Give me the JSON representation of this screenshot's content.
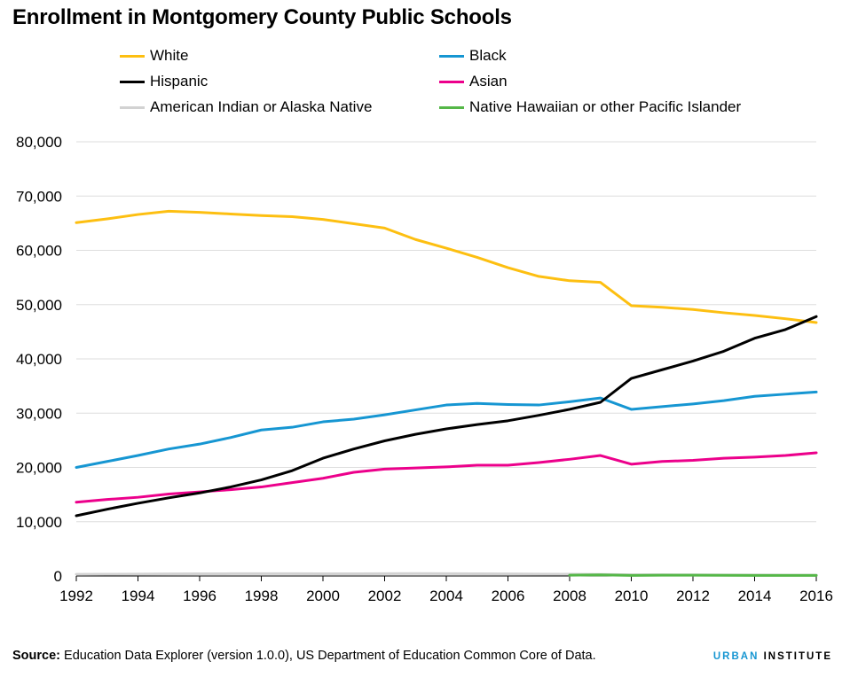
{
  "title": "Enrollment in Montgomery County Public Schools",
  "source": {
    "label": "Source:",
    "text": " Education Data Explorer (version 1.0.0), US Department of Education Common Core of Data."
  },
  "brand": {
    "part1": "URBAN",
    "part2": " INSTITUTE",
    "color1": "#1696d2",
    "color2": "#000000"
  },
  "chart_data": {
    "type": "line",
    "title": "Enrollment in Montgomery County Public Schools",
    "xlabel": "",
    "ylabel": "",
    "xlim": [
      1992,
      2016
    ],
    "ylim": [
      0,
      80000
    ],
    "x_ticks": [
      1992,
      1994,
      1996,
      1998,
      2000,
      2002,
      2004,
      2006,
      2008,
      2010,
      2012,
      2014,
      2016
    ],
    "y_ticks": [
      0,
      10000,
      20000,
      30000,
      40000,
      50000,
      60000,
      70000,
      80000
    ],
    "y_tick_labels": [
      "0",
      "10,000",
      "20,000",
      "30,000",
      "40,000",
      "50,000",
      "60,000",
      "70,000",
      "80,000"
    ],
    "grid": "horizontal",
    "legend_placement": "top",
    "x": [
      1992,
      1993,
      1994,
      1995,
      1996,
      1997,
      1998,
      1999,
      2000,
      2001,
      2002,
      2003,
      2004,
      2005,
      2006,
      2007,
      2008,
      2009,
      2010,
      2011,
      2012,
      2013,
      2014,
      2015,
      2016
    ],
    "series": [
      {
        "name": "White",
        "color": "#fdbf11",
        "values": [
          65100,
          65800,
          66600,
          67200,
          67000,
          66700,
          66400,
          66200,
          65700,
          64900,
          64100,
          62000,
          60400,
          58700,
          56800,
          55200,
          54400,
          54100,
          49800,
          49500,
          49100,
          48500,
          48000,
          47400,
          46700
        ]
      },
      {
        "name": "Black",
        "color": "#1696d2",
        "values": [
          20000,
          21100,
          22200,
          23400,
          24300,
          25500,
          26900,
          27400,
          28400,
          28900,
          29700,
          30600,
          31500,
          31800,
          31600,
          31500,
          32100,
          32800,
          30700,
          31200,
          31700,
          32300,
          33100,
          33500,
          33900
        ]
      },
      {
        "name": "Hispanic",
        "color": "#000000",
        "values": [
          11100,
          12300,
          13400,
          14400,
          15300,
          16400,
          17700,
          19400,
          21700,
          23400,
          24900,
          26100,
          27100,
          27900,
          28600,
          29600,
          30700,
          32000,
          36400,
          38000,
          39600,
          41400,
          43800,
          45400,
          47800
        ]
      },
      {
        "name": "Asian",
        "color": "#ec008b",
        "values": [
          13600,
          14100,
          14500,
          15100,
          15500,
          15900,
          16400,
          17200,
          18000,
          19100,
          19700,
          19900,
          20100,
          20400,
          20400,
          20900,
          21500,
          22200,
          20600,
          21100,
          21300,
          21700,
          21900,
          22200,
          22700
        ]
      },
      {
        "name": "American Indian or Alaska Native",
        "color": "#d2d2d2",
        "values": [
          300,
          320,
          350,
          380,
          400,
          420,
          430,
          420,
          400,
          400,
          420,
          450,
          430,
          400,
          380,
          350,
          320,
          280,
          230,
          220,
          200,
          190,
          180,
          170,
          160
        ]
      },
      {
        "name": "Native Hawaiian or other Pacific Islander",
        "color": "#55b748",
        "x": [
          2008,
          2009,
          2010,
          2011,
          2012,
          2013,
          2014,
          2015,
          2016
        ],
        "values": [
          150,
          200,
          100,
          140,
          150,
          120,
          110,
          100,
          100
        ]
      }
    ]
  }
}
